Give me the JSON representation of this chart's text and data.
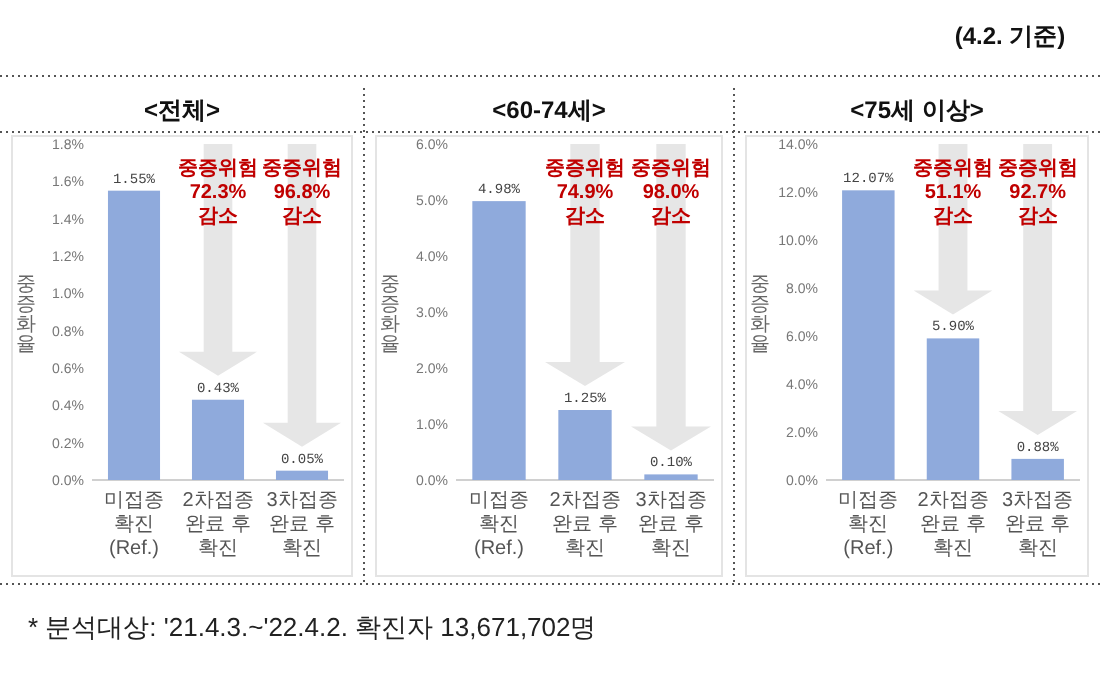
{
  "chart_data": [
    {
      "type": "bar",
      "title": "<전체>",
      "ylabel": "중증화율",
      "categories": [
        "미접종 확진 (Ref.)",
        "2차접종 완료 후 확진",
        "3차접종 완료 후 확진"
      ],
      "values": [
        1.55,
        0.43,
        0.05
      ],
      "value_labels": [
        "1.55%",
        "0.43%",
        "0.05%"
      ],
      "color": "#8faadc",
      "ylim": [
        0,
        1.8
      ],
      "yticks": [
        {
          "value": 0,
          "label": "0.0%"
        },
        {
          "value": 0.2,
          "label": "0.2%"
        },
        {
          "value": 0.4,
          "label": "0.4%"
        },
        {
          "value": 0.6,
          "label": "0.6%"
        },
        {
          "value": 0.8,
          "label": "0.8%"
        },
        {
          "value": 1.0,
          "label": "1.0%"
        },
        {
          "value": 1.2,
          "label": "1.2%"
        },
        {
          "value": 1.4,
          "label": "1.4%"
        },
        {
          "value": 1.6,
          "label": "1.6%"
        },
        {
          "value": 1.8,
          "label": "1.8%"
        }
      ],
      "annotations": [
        "중증위험 72.3% 감소",
        "중증위험 96.8% 감소",
        "(4.2. 기준)",
        "* 분석대상: '21.4.3.~'22.4.2. 확진자 13,671,702명"
      ]
    },
    {
      "type": "bar",
      "title": "<60-74세>",
      "ylabel": "중증화율",
      "categories": [
        "미접종 확진 (Ref.)",
        "2차접종 완료 후 확진",
        "3차접종 완료 후 확진"
      ],
      "values": [
        4.98,
        1.25,
        0.1
      ],
      "value_labels": [
        "4.98%",
        "1.25%",
        "0.10%"
      ],
      "color": "#8faadc",
      "ylim": [
        0,
        6.0
      ],
      "yticks": [
        {
          "value": 0,
          "label": "0.0%"
        },
        {
          "value": 1,
          "label": "1.0%"
        },
        {
          "value": 2,
          "label": "2.0%"
        },
        {
          "value": 3,
          "label": "3.0%"
        },
        {
          "value": 4,
          "label": "4.0%"
        },
        {
          "value": 5,
          "label": "5.0%"
        },
        {
          "value": 6,
          "label": "6.0%"
        }
      ],
      "annotations": [
        "중증위험 74.9% 감소",
        "중증위험 98.0% 감소"
      ]
    },
    {
      "type": "bar",
      "title": "<75세 이상>",
      "ylabel": "중증화율",
      "categories": [
        "미접종 확진 (Ref.)",
        "2차접종 완료 후 확진",
        "3차접종 완료 후 확진"
      ],
      "values": [
        12.07,
        5.9,
        0.88
      ],
      "value_labels": [
        "12.07%",
        "5.90%",
        "0.88%"
      ],
      "color": "#8faadc",
      "ylim": [
        0,
        14.0
      ],
      "yticks": [
        {
          "value": 0,
          "label": "0.0%"
        },
        {
          "value": 2,
          "label": "2.0%"
        },
        {
          "value": 4,
          "label": "4.0%"
        },
        {
          "value": 6,
          "label": "6.0%"
        },
        {
          "value": 8,
          "label": "8.0%"
        },
        {
          "value": 10,
          "label": "10.0%"
        },
        {
          "value": 12,
          "label": "12.0%"
        },
        {
          "value": 14,
          "label": "14.0%"
        }
      ],
      "annotations": [
        "중증위험 51.1% 감소",
        "중증위험 92.7% 감소"
      ]
    }
  ]
}
